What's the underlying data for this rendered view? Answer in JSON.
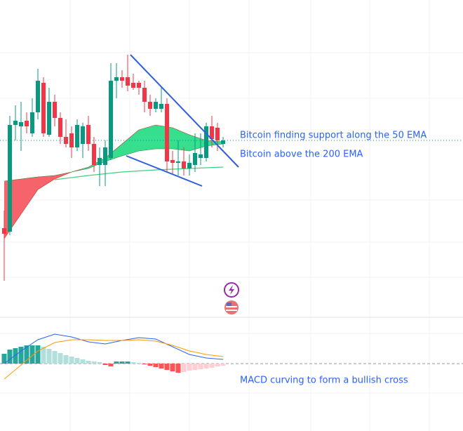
{
  "chart_data": {
    "type": "candlestick",
    "ylim": [
      0,
      452
    ],
    "candles": {
      "open": [
        127,
        122,
        274,
        272,
        280,
        262,
        292,
        334,
        260,
        307,
        284,
        257,
        262,
        242,
        247,
        274,
        247,
        217,
        217,
        227,
        337,
        342,
        342,
        334,
        334,
        327,
        307,
        297,
        297,
        304,
        224,
        220,
        222,
        212,
        217,
        227,
        227,
        272,
        270,
        247
      ],
      "high": [
        152,
        287,
        302,
        307,
        292,
        312,
        354,
        342,
        327,
        317,
        292,
        282,
        272,
        282,
        277,
        287,
        257,
        242,
        252,
        362,
        362,
        352,
        374,
        347,
        337,
        337,
        317,
        312,
        327,
        312,
        237,
        252,
        242,
        232,
        262,
        262,
        277,
        287,
        277,
        257
      ],
      "low": [
        52,
        117,
        252,
        237,
        262,
        257,
        282,
        257,
        257,
        272,
        247,
        242,
        227,
        237,
        227,
        237,
        207,
        187,
        187,
        224,
        312,
        327,
        322,
        324,
        317,
        292,
        287,
        292,
        292,
        207,
        204,
        202,
        202,
        202,
        207,
        217,
        222,
        242,
        237,
        242
      ],
      "close": [
        119,
        274,
        280,
        278,
        272,
        292,
        337,
        262,
        307,
        284,
        257,
        247,
        242,
        274,
        272,
        247,
        217,
        227,
        242,
        337,
        342,
        337,
        330,
        327,
        327,
        307,
        297,
        307,
        304,
        222,
        220,
        222,
        212,
        220,
        234,
        232,
        272,
        254,
        252,
        252
      ],
      "up_color": "#089981",
      "down_color": "#f23645"
    },
    "ema_x": [
      0,
      3,
      6,
      9,
      12,
      15,
      18,
      21,
      24,
      27,
      30,
      33,
      36,
      39
    ],
    "ema_fast": [
      112,
      147,
      182,
      197,
      207,
      214,
      227,
      247,
      267,
      274,
      270,
      260,
      252,
      250
    ],
    "ema_slow": [
      194,
      197,
      200,
      202,
      207,
      212,
      222,
      230,
      237,
      240,
      240,
      237,
      244,
      247
    ],
    "fill_up_color": "#1fdc82",
    "fill_down_color": "#f5525a",
    "ema200_x": [
      9,
      15,
      21,
      27,
      33,
      39
    ],
    "ema200": [
      196,
      202,
      207,
      210,
      212,
      214
    ],
    "ema200_color": "#3fd17a",
    "annotations": [
      "Bitcoin finding support along the 50 EMA",
      "Bitcoin above the 200 EMA",
      "MACD curving to form a bullish cross"
    ],
    "macd": {
      "ylim": [
        -96,
        66
      ],
      "histogram": [
        14,
        20,
        22,
        24,
        26,
        26,
        26,
        24,
        21,
        18,
        15,
        12,
        10,
        8,
        6,
        4,
        3,
        2,
        -2,
        -4,
        3,
        3,
        3,
        2,
        1,
        -1,
        -3,
        -5,
        -7,
        -9,
        -11,
        -13,
        -12,
        -10,
        -9,
        -8,
        -7,
        -6,
        -4,
        -3
      ],
      "hist_colors": [
        "#26a69a",
        "#b2dfdb",
        "#ffcdd2",
        "#ff5252"
      ],
      "line_x": [
        0,
        3,
        6,
        9,
        12,
        15,
        18,
        21,
        24,
        27,
        30,
        33,
        36,
        39
      ],
      "macd_line": [
        0,
        18,
        34,
        42,
        38,
        31,
        28,
        33,
        37,
        35,
        24,
        13,
        8,
        6
      ],
      "signal_line": [
        -22,
        -2,
        18,
        30,
        34,
        34,
        33,
        33,
        34,
        32,
        26,
        18,
        13,
        10
      ],
      "macd_color": "#2962ff",
      "signal_color": "#ff9800"
    }
  }
}
